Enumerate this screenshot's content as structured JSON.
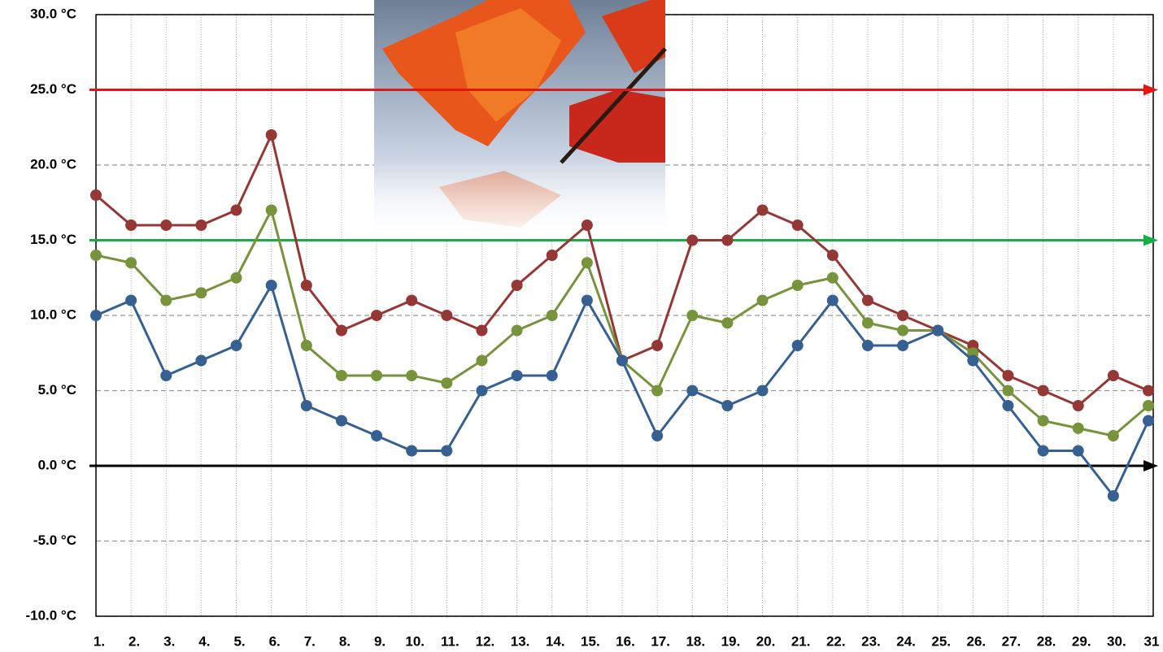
{
  "chart_data": {
    "type": "line",
    "categories": [
      "1.",
      "2.",
      "3.",
      "4.",
      "5.",
      "6.",
      "7.",
      "8.",
      "9.",
      "10.",
      "11.",
      "12.",
      "13.",
      "14.",
      "15.",
      "16.",
      "17.",
      "18.",
      "19.",
      "20.",
      "21.",
      "22.",
      "23.",
      "24.",
      "25.",
      "26.",
      "27.",
      "28.",
      "29.",
      "30.",
      "31"
    ],
    "series": [
      {
        "color": "#953735",
        "values": [
          18,
          16,
          16,
          16,
          17,
          22,
          12,
          9,
          10,
          11,
          10,
          9,
          12,
          14,
          16,
          7,
          8,
          15,
          15,
          17,
          16,
          14,
          11,
          10,
          9,
          8,
          6,
          5,
          4,
          6,
          5
        ]
      },
      {
        "color": "#77933c",
        "values": [
          14,
          13.5,
          11,
          11.5,
          12.5,
          17,
          8,
          6,
          6,
          6,
          5.5,
          7,
          9,
          10,
          13.5,
          7,
          5,
          10,
          9.5,
          11,
          12,
          12.5,
          9.5,
          9,
          9,
          7.5,
          5,
          3,
          2.5,
          2,
          4
        ]
      },
      {
        "color": "#376092",
        "values": [
          10,
          11,
          6,
          7,
          8,
          12,
          4,
          3,
          2,
          1,
          1,
          5,
          6,
          6,
          11,
          7,
          2,
          5,
          4,
          5,
          8,
          11,
          8,
          8,
          9,
          7,
          4,
          1,
          1,
          -2,
          3
        ]
      }
    ],
    "reference_lines": [
      {
        "value": 25,
        "color": "#e81414"
      },
      {
        "value": 15,
        "color": "#13b04a"
      },
      {
        "value": 0,
        "color": "#000000"
      }
    ],
    "ylim": [
      -10,
      30
    ],
    "yticks": [
      {
        "value": -10,
        "label": "-10.0 °C"
      },
      {
        "value": -5,
        "label": "-5.0 °C"
      },
      {
        "value": 0,
        "label": "0.0 °C"
      },
      {
        "value": 5,
        "label": "5.0 °C"
      },
      {
        "value": 10,
        "label": "10.0 °C"
      },
      {
        "value": 15,
        "label": "15.0 °C"
      },
      {
        "value": 20,
        "label": "20.0 °C"
      },
      {
        "value": 25,
        "label": "25.0 °C"
      },
      {
        "value": 30,
        "label": "30.0 °C"
      }
    ],
    "grid": true
  }
}
